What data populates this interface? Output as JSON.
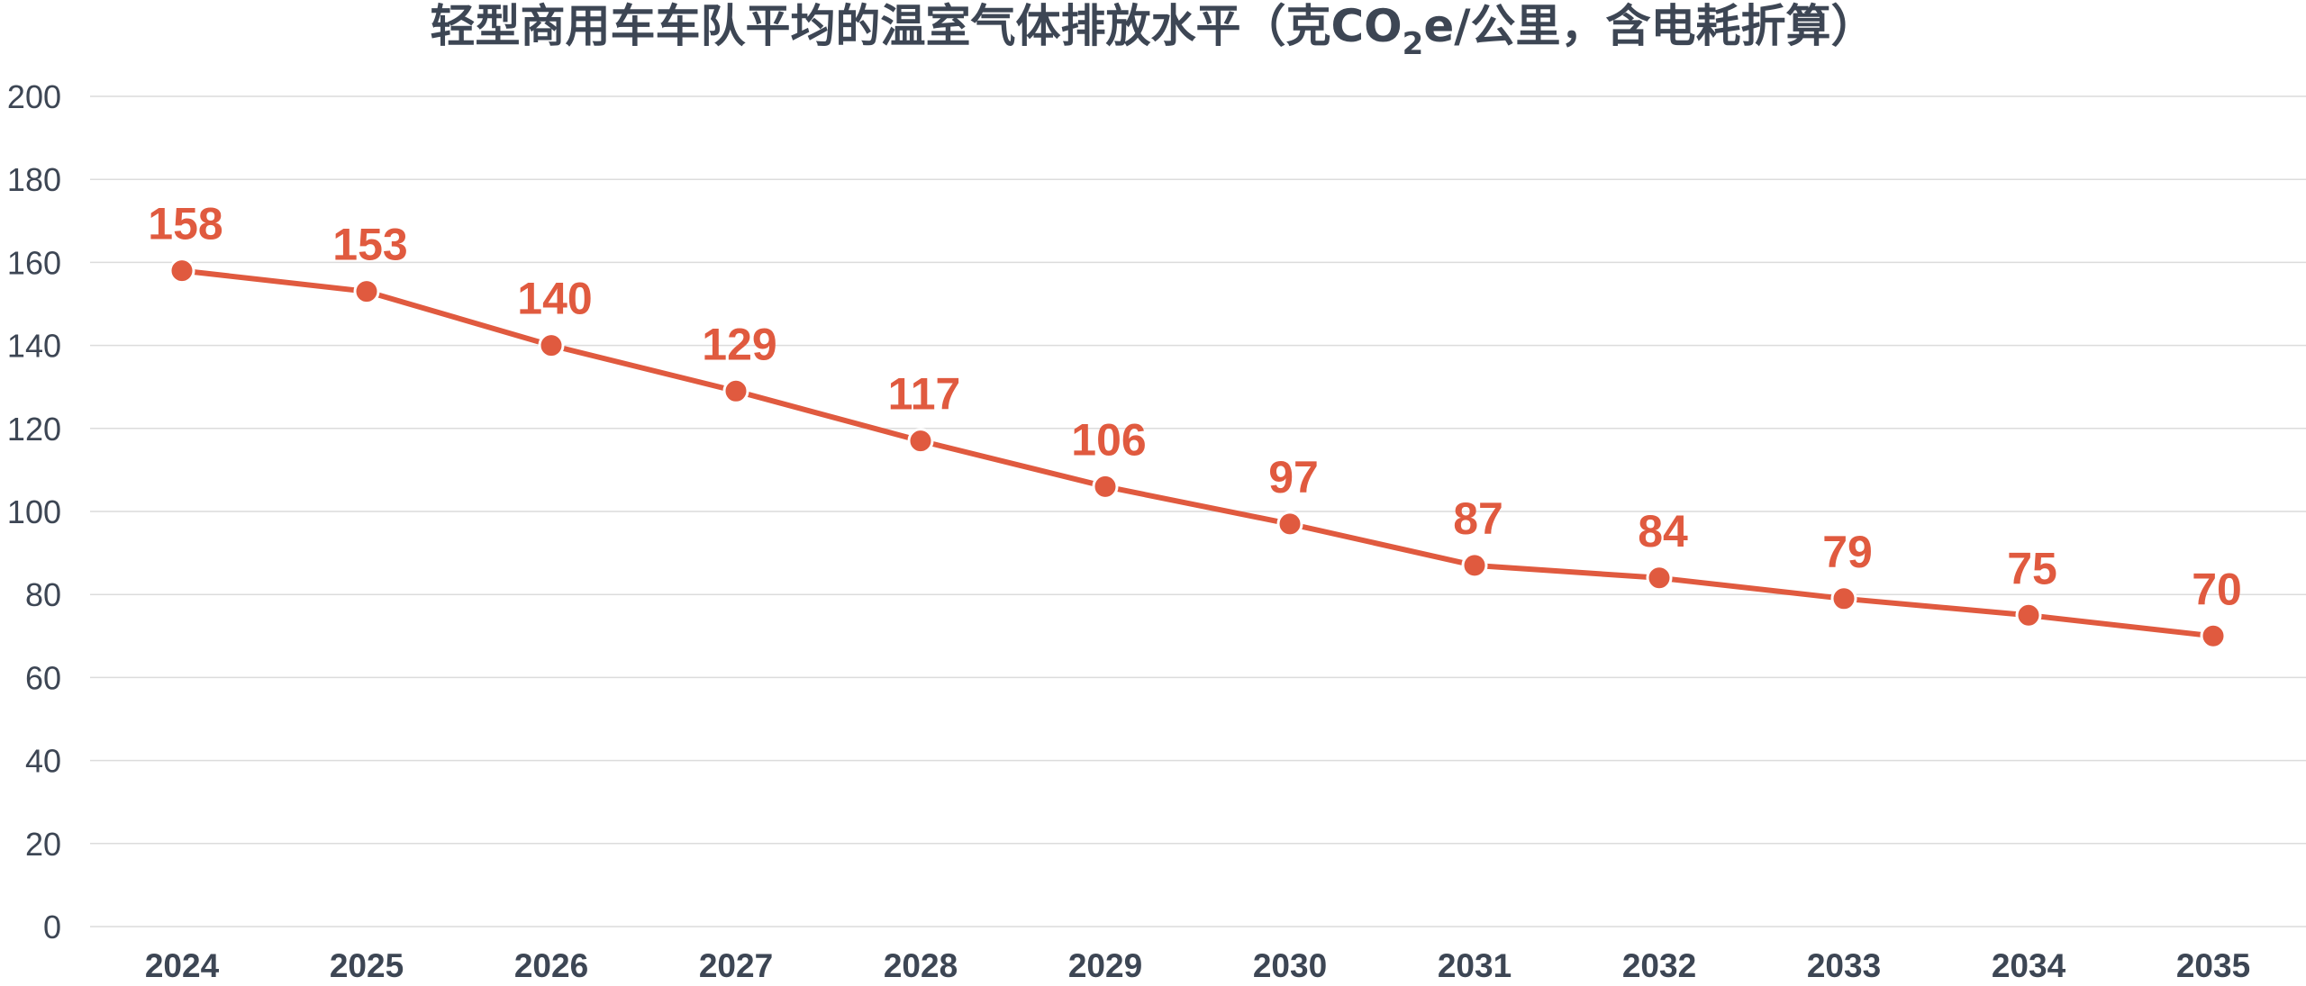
{
  "chart_data": {
    "type": "line",
    "title": {
      "main": "轻型商用车车队平均的温室气体排放水平（克CO",
      "subscript": "2",
      "tail": "e/公里，含电耗折算）"
    },
    "x": [
      "2024",
      "2025",
      "2026",
      "2027",
      "2028",
      "2029",
      "2030",
      "2031",
      "2032",
      "2033",
      "2034",
      "2035"
    ],
    "series": [
      {
        "values": [
          158,
          153,
          140,
          129,
          117,
          106,
          97,
          87,
          84,
          79,
          75,
          70
        ],
        "color": "#e05a3f"
      }
    ],
    "ylim": [
      0,
      200
    ],
    "yticks": [
      0,
      20,
      40,
      60,
      80,
      100,
      120,
      140,
      160,
      180,
      200
    ],
    "grid": true,
    "legend": "none",
    "data_labels": true
  }
}
